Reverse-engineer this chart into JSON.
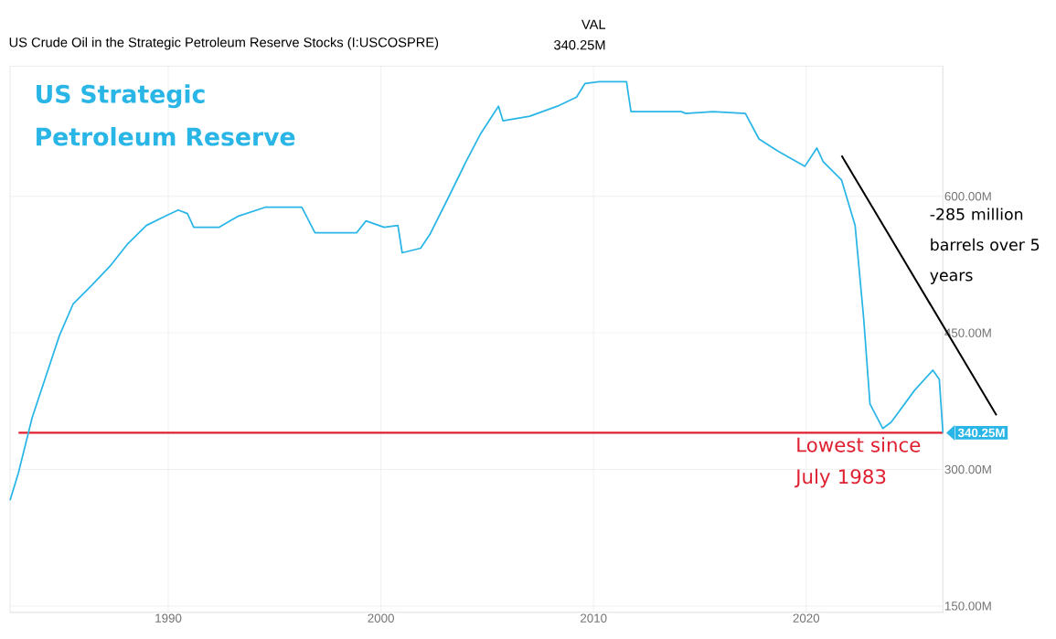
{
  "chart_data": {
    "type": "line",
    "title": "US Crude Oil in the Strategic Petroleum Reserve Stocks (I:USCOSPRE)",
    "x": [
      1982.56,
      1982.95,
      1983.6,
      1984.24,
      1984.88,
      1985.53,
      1986.39,
      1987.25,
      1988.1,
      1988.97,
      1989.83,
      1990.47,
      1990.9,
      1991.2,
      1992.4,
      1993.27,
      1994.56,
      1996.28,
      1996.9,
      1998.86,
      1999.3,
      2000.15,
      2000.8,
      2001.0,
      2001.87,
      2002.3,
      2003.16,
      2004.0,
      2004.67,
      2005.53,
      2005.74,
      2007.0,
      2008.3,
      2009.2,
      2009.6,
      2010.26,
      2011.55,
      2011.76,
      2014.13,
      2014.34,
      2015.63,
      2017.14,
      2017.78,
      2018.65,
      2019.94,
      2020.5,
      2020.8,
      2021.66,
      2022.3,
      2022.7,
      2023.0,
      2023.6,
      2024.0,
      2025.1,
      2025.96,
      2026.26,
      2026.43
    ],
    "series": [
      {
        "color": "#29b6e6",
        "values": [
          266,
          296,
          357,
          402,
          447,
          482,
          502,
          523,
          548,
          568,
          578,
          585,
          581,
          566,
          566,
          578,
          588,
          588,
          560,
          560,
          573,
          566,
          568,
          538,
          543,
          558,
          598,
          638,
          668,
          699,
          683,
          688,
          699,
          709,
          724,
          726,
          726,
          693,
          693,
          691,
          693,
          691,
          663,
          650,
          633,
          653,
          638,
          618,
          568,
          467,
          372,
          345,
          352,
          387,
          409,
          399,
          340.25
        ]
      }
    ],
    "xlim": [
      1982.56,
      2026.43
    ],
    "ylim": [
      143,
      743
    ],
    "xticks": [
      1990,
      2000,
      2010,
      2020
    ],
    "yticks": [
      {
        "value": 150,
        "label": "150.00M"
      },
      {
        "value": 300,
        "label": "300.00M"
      },
      {
        "value": 450,
        "label": "450.00M"
      },
      {
        "value": 600,
        "label": "600.00M"
      }
    ],
    "grid": true,
    "ref_lines": [
      {
        "axis": "y",
        "value": 340.25,
        "label": "Lowest since July 1983",
        "color": "#e02030"
      }
    ],
    "annotations": [
      "VAL",
      "340.25M",
      "US Strategic Petroleum Reserve",
      "-285 million barrels over 5 years",
      {
        "text": "340.25M",
        "x": 2026.43,
        "y": 340.25
      }
    ]
  }
}
